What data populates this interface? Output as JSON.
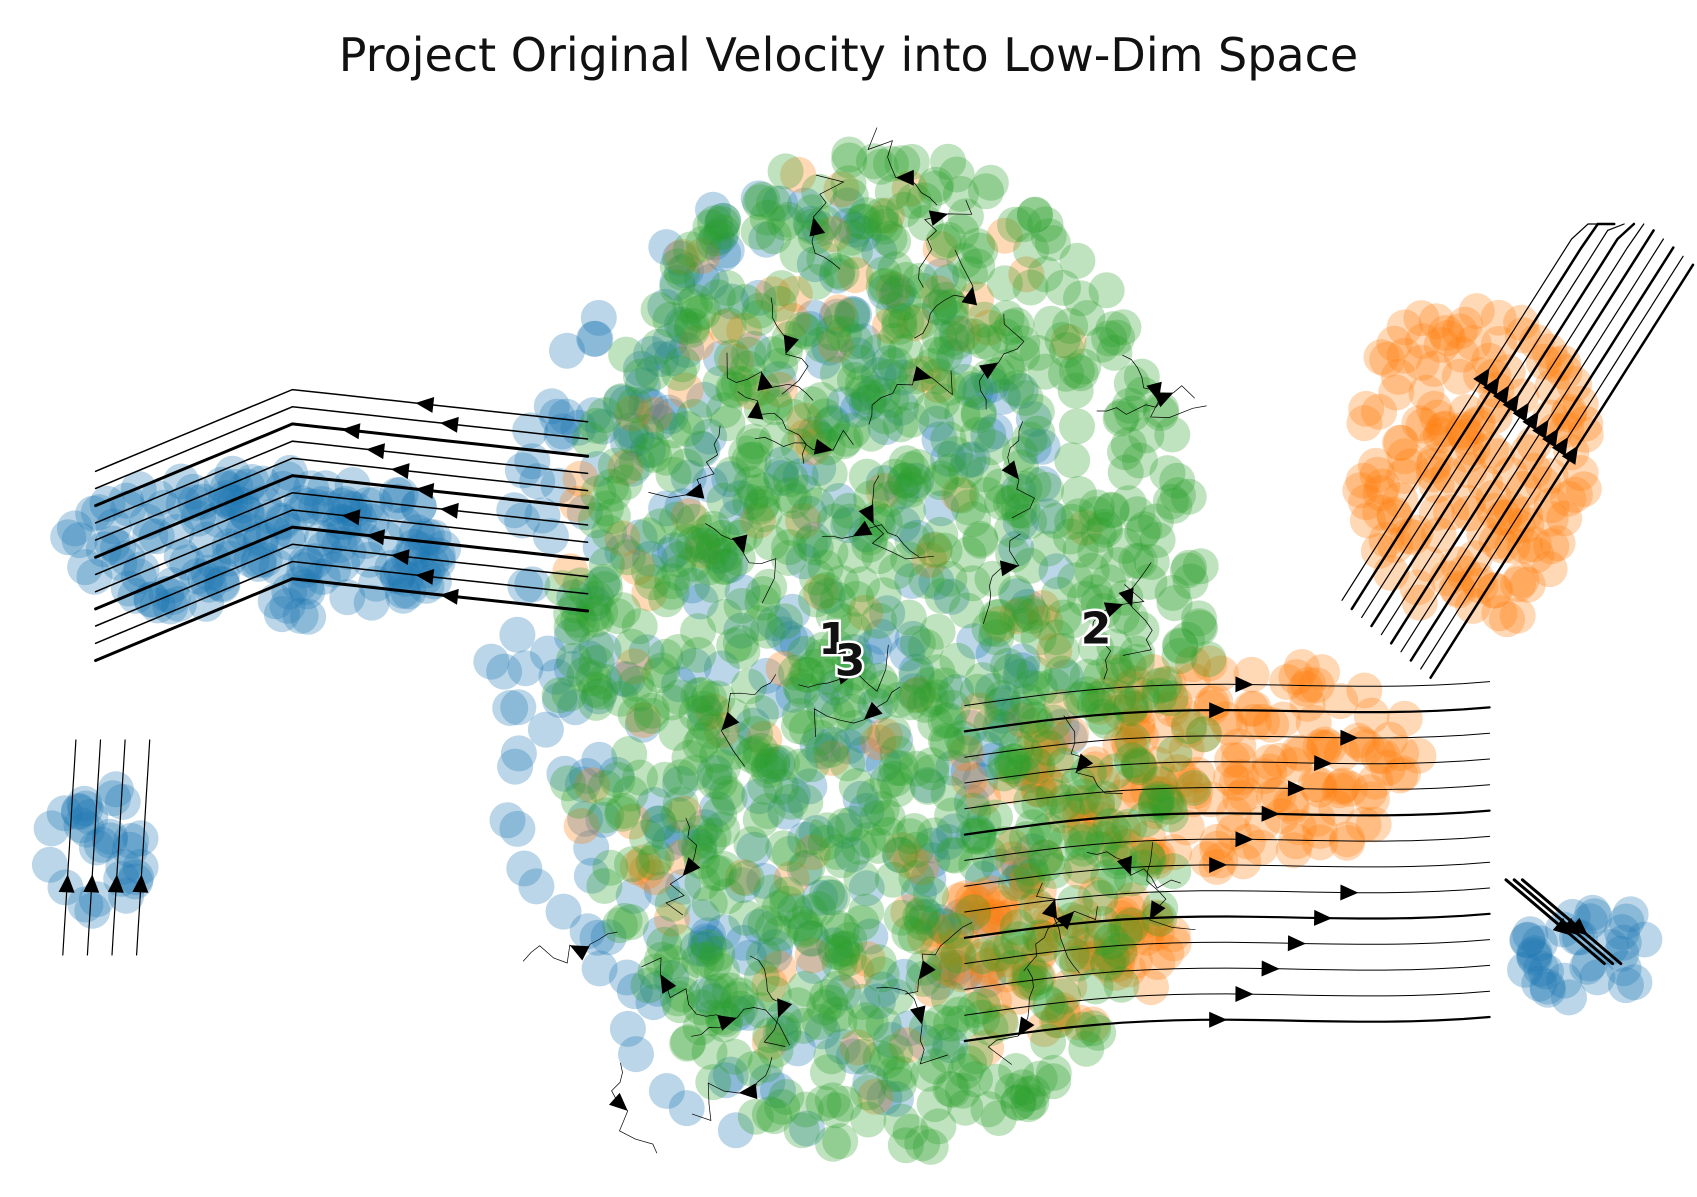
{
  "chart_data": {
    "type": "scatter",
    "title": "Project Original Velocity into Low-Dim Space",
    "xlabel": "",
    "ylabel": "",
    "axes_visible": false,
    "grid": false,
    "legend": "none",
    "overlay": "velocity streamlines with arrowheads",
    "xlim": [
      0,
      100
    ],
    "ylim": [
      0,
      100
    ],
    "series": [
      {
        "name": "1",
        "color": "#1f77b4",
        "regions": [
          {
            "cx": 46,
            "cy": 47,
            "rx": 18,
            "ry": 44,
            "n": 380
          },
          {
            "cx": 14,
            "cy": 58,
            "rx": 12,
            "ry": 7,
            "n": 170
          },
          {
            "cx": 4,
            "cy": 30,
            "rx": 3,
            "ry": 6,
            "n": 30
          },
          {
            "cx": 95,
            "cy": 20,
            "rx": 4,
            "ry": 5,
            "n": 35
          }
        ]
      },
      {
        "name": "2",
        "color": "#ff7f0e",
        "regions": [
          {
            "cx": 88,
            "cy": 66,
            "rx": 7,
            "ry": 16,
            "n": 160
          },
          {
            "cx": 73,
            "cy": 38,
            "rx": 12,
            "ry": 10,
            "n": 170
          },
          {
            "cx": 62,
            "cy": 20,
            "rx": 8,
            "ry": 7,
            "n": 90
          },
          {
            "cx": 50,
            "cy": 50,
            "rx": 18,
            "ry": 44,
            "n": 120
          }
        ]
      },
      {
        "name": "3",
        "color": "#2ca02c",
        "regions": [
          {
            "cx": 52,
            "cy": 48,
            "rx": 20,
            "ry": 47,
            "n": 1050
          }
        ]
      }
    ],
    "cluster_labels": [
      {
        "text": "1",
        "x": 49,
        "y": 48
      },
      {
        "text": "2",
        "x": 65,
        "y": 49
      },
      {
        "text": "3",
        "x": 50,
        "y": 46
      }
    ]
  }
}
